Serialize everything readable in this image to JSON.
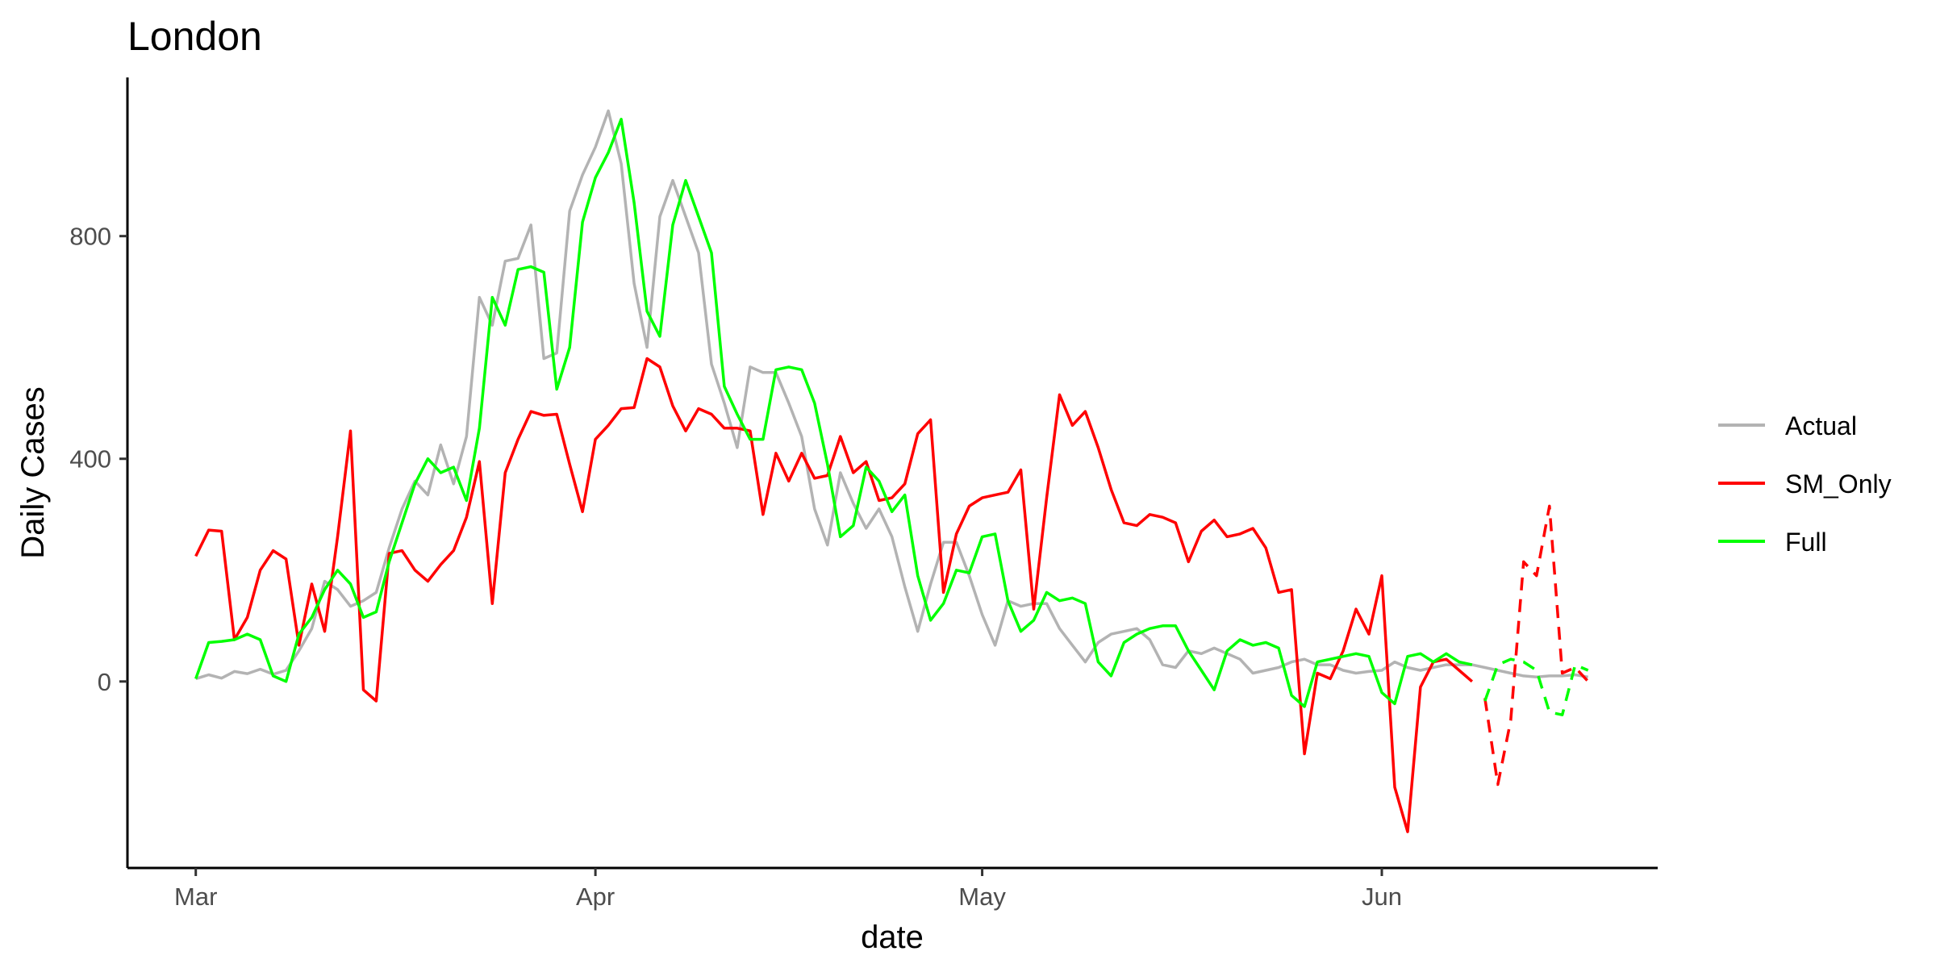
{
  "chart_data": {
    "type": "line",
    "title": "London",
    "xlabel": "date",
    "ylabel": "Daily Cases",
    "x_ticks": [
      {
        "label": "Mar",
        "day": 0
      },
      {
        "label": "Apr",
        "day": 31
      },
      {
        "label": "May",
        "day": 61
      },
      {
        "label": "Jun",
        "day": 92
      }
    ],
    "y_ticks": [
      0,
      400,
      800
    ],
    "xlim_day": [
      -5.3,
      113.4
    ],
    "ylim": [
      -335,
      1085
    ],
    "start_date": "2020-03-01",
    "grid": false,
    "legend_position": "right",
    "colors": {
      "Actual": "#b3b3b3",
      "SM_Only": "#ff0000",
      "Full": "#00ff00"
    },
    "series": [
      {
        "name": "Actual",
        "color": "#b3b3b3",
        "style": "solid",
        "x": [
          0,
          1,
          2,
          3,
          4,
          5,
          6,
          7,
          8,
          9,
          10,
          11,
          12,
          13,
          14,
          15,
          16,
          17,
          18,
          19,
          20,
          21,
          22,
          23,
          24,
          25,
          26,
          27,
          28,
          29,
          30,
          31,
          32,
          33,
          34,
          35,
          36,
          37,
          38,
          39,
          40,
          41,
          42,
          43,
          44,
          45,
          46,
          47,
          48,
          49,
          50,
          51,
          52,
          53,
          54,
          55,
          56,
          57,
          58,
          59,
          60,
          61,
          62,
          63,
          64,
          65,
          66,
          67,
          68,
          69,
          70,
          71,
          72,
          73,
          74,
          75,
          76,
          77,
          78,
          79,
          80,
          81,
          82,
          83,
          84,
          85,
          86,
          87,
          88,
          89,
          90,
          91,
          92,
          93,
          94,
          95,
          96,
          97,
          98,
          99,
          100,
          101,
          102,
          103,
          104,
          105,
          106,
          107,
          108
        ],
        "values": [
          5,
          12,
          6,
          18,
          14,
          22,
          13,
          20,
          55,
          95,
          180,
          165,
          135,
          145,
          160,
          240,
          310,
          360,
          335,
          425,
          355,
          440,
          690,
          640,
          755,
          760,
          820,
          580,
          590,
          845,
          910,
          960,
          1025,
          930,
          715,
          600,
          835,
          900,
          835,
          770,
          570,
          500,
          420,
          565,
          555,
          555,
          500,
          440,
          310,
          245,
          375,
          320,
          275,
          310,
          260,
          170,
          90,
          175,
          250,
          250,
          190,
          120,
          65,
          145,
          135,
          140,
          140,
          95,
          65,
          35,
          70,
          85,
          90,
          95,
          75,
          30,
          25,
          55,
          50,
          60,
          50,
          40,
          15,
          20,
          25,
          35,
          40,
          30,
          30,
          20,
          15,
          18,
          20,
          35,
          25,
          20,
          25,
          30,
          30,
          30,
          25,
          20,
          15,
          10,
          8,
          10,
          10,
          12,
          8
        ]
      },
      {
        "name": "SM_Only",
        "color": "#ff0000",
        "style": "solid",
        "x": [
          0,
          1,
          2,
          3,
          4,
          5,
          6,
          7,
          8,
          9,
          10,
          11,
          12,
          13,
          14,
          15,
          16,
          17,
          18,
          19,
          20,
          21,
          22,
          23,
          24,
          25,
          26,
          27,
          28,
          29,
          30,
          31,
          32,
          33,
          34,
          35,
          36,
          37,
          38,
          39,
          40,
          41,
          42,
          43,
          44,
          45,
          46,
          47,
          48,
          49,
          50,
          51,
          52,
          53,
          54,
          55,
          56,
          57,
          58,
          59,
          60,
          61,
          62,
          63,
          64,
          65,
          66,
          67,
          68,
          69,
          70,
          71,
          72,
          73,
          74,
          75,
          76,
          77,
          78,
          79,
          80,
          81,
          82,
          83,
          84,
          85,
          86,
          87,
          88,
          89,
          90,
          91,
          92,
          93,
          94,
          95,
          96,
          97,
          98,
          99
        ],
        "values": [
          225,
          272,
          270,
          75,
          115,
          200,
          235,
          220,
          65,
          175,
          90,
          260,
          450,
          -15,
          -35,
          230,
          235,
          200,
          180,
          210,
          235,
          295,
          395,
          140,
          375,
          435,
          485,
          478,
          480,
          390,
          305,
          435,
          460,
          490,
          492,
          580,
          565,
          495,
          450,
          490,
          480,
          455,
          455,
          450,
          300,
          410,
          360,
          410,
          365,
          370,
          440,
          375,
          395,
          325,
          330,
          355,
          445,
          470,
          160,
          265,
          315,
          330,
          335,
          340,
          380,
          130,
          330,
          515,
          460,
          485,
          420,
          345,
          285,
          280,
          300,
          295,
          285,
          215,
          270,
          290,
          260,
          265,
          275,
          240,
          160,
          165,
          -130,
          15,
          5,
          55,
          130,
          85,
          190,
          -190,
          -270,
          -10,
          35,
          40,
          20,
          0
        ]
      },
      {
        "name": "SM_Only",
        "color": "#ff0000",
        "style": "dashed",
        "x": [
          100,
          101,
          102,
          103,
          104,
          105,
          106,
          107,
          108
        ],
        "values": [
          -30,
          -185,
          -70,
          215,
          190,
          315,
          15,
          25,
          0
        ]
      },
      {
        "name": "Full",
        "color": "#00ff00",
        "style": "solid",
        "x": [
          0,
          1,
          2,
          3,
          4,
          5,
          6,
          7,
          8,
          9,
          10,
          11,
          12,
          13,
          14,
          15,
          16,
          17,
          18,
          19,
          20,
          21,
          22,
          23,
          24,
          25,
          26,
          27,
          28,
          29,
          30,
          31,
          32,
          33,
          34,
          35,
          36,
          37,
          38,
          39,
          40,
          41,
          42,
          43,
          44,
          45,
          46,
          47,
          48,
          49,
          50,
          51,
          52,
          53,
          54,
          55,
          56,
          57,
          58,
          59,
          60,
          61,
          62,
          63,
          64,
          65,
          66,
          67,
          68,
          69,
          70,
          71,
          72,
          73,
          74,
          75,
          76,
          77,
          78,
          79,
          80,
          81,
          82,
          83,
          84,
          85,
          86,
          87,
          88,
          89,
          90,
          91,
          92,
          93,
          94,
          95,
          96,
          97,
          98,
          99
        ],
        "values": [
          5,
          70,
          72,
          75,
          85,
          75,
          10,
          0,
          85,
          115,
          165,
          200,
          175,
          115,
          125,
          215,
          285,
          355,
          400,
          375,
          385,
          325,
          455,
          690,
          640,
          740,
          745,
          735,
          525,
          600,
          825,
          905,
          950,
          1010,
          860,
          665,
          620,
          820,
          900,
          835,
          770,
          530,
          480,
          435,
          435,
          560,
          565,
          560,
          500,
          390,
          260,
          280,
          385,
          360,
          305,
          335,
          190,
          110,
          140,
          200,
          195,
          260,
          265,
          145,
          90,
          110,
          160,
          145,
          150,
          140,
          35,
          10,
          70,
          85,
          95,
          100,
          100,
          55,
          20,
          -15,
          55,
          75,
          65,
          70,
          60,
          -25,
          -45,
          35,
          40,
          45,
          50,
          45,
          -20,
          -40,
          45,
          50,
          35,
          50,
          35,
          30
        ]
      },
      {
        "name": "Full",
        "color": "#00ff00",
        "style": "dashed",
        "x": [
          100,
          101,
          102,
          103,
          104,
          105,
          106,
          107,
          108
        ],
        "values": [
          -35,
          30,
          40,
          35,
          20,
          -55,
          -60,
          30,
          20
        ]
      }
    ]
  }
}
